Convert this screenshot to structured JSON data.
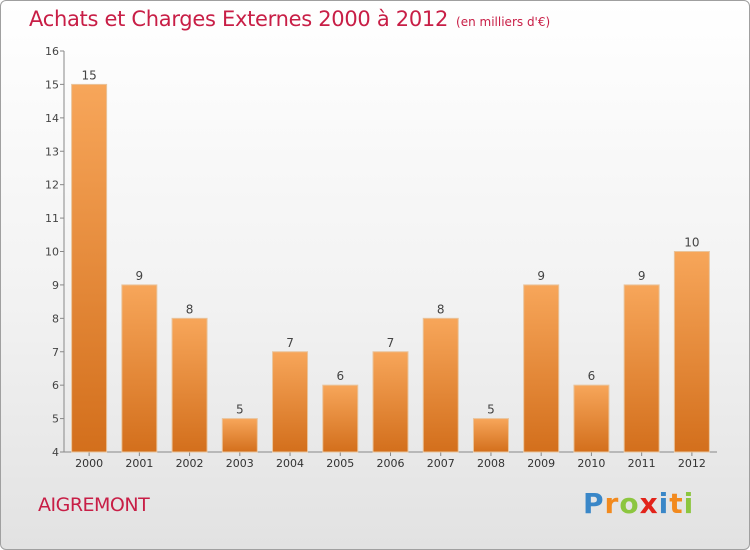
{
  "chart_data": {
    "type": "bar",
    "title": "Achats et Charges Externes 2000 à 2012",
    "subtitle": "(en milliers d'€)",
    "categories": [
      "2000",
      "2001",
      "2002",
      "2003",
      "2004",
      "2005",
      "2006",
      "2007",
      "2008",
      "2009",
      "2010",
      "2011",
      "2012"
    ],
    "values": [
      15,
      9,
      8,
      5,
      7,
      6,
      7,
      8,
      5,
      9,
      6,
      9,
      10
    ],
    "value_labels": [
      "15",
      "9",
      "8",
      "5",
      "7",
      "6",
      "7",
      "8",
      "5",
      "9",
      "6",
      "9",
      "10"
    ],
    "yticks": [
      "4",
      "5",
      "6",
      "7",
      "8",
      "9",
      "10",
      "11",
      "12",
      "13",
      "14",
      "15",
      "16"
    ],
    "ylim": [
      4,
      16
    ],
    "xlabel": "",
    "ylabel": "",
    "grid": false,
    "legend": "none",
    "colors": {
      "bar_top": "#f7a65a",
      "bar_bottom": "#d36f1c",
      "title": "#c81e46"
    }
  },
  "location_name": "AIGREMONT",
  "brand": {
    "letters": [
      "P",
      "r",
      "o",
      "x",
      "i",
      "t",
      "i"
    ],
    "colors": [
      "#3a87c8",
      "#f28a1e",
      "#8cc63f",
      "#e2231a",
      "#3a87c8",
      "#f28a1e",
      "#8cc63f"
    ]
  }
}
